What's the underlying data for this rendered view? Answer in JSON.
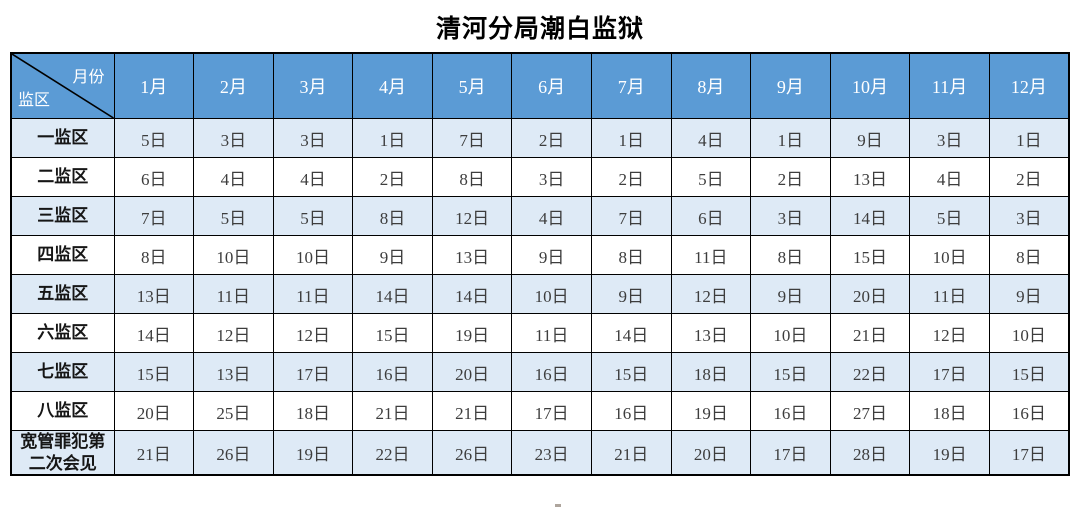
{
  "title": "清河分局潮白监狱",
  "colors": {
    "header_bg": "#5B9BD5",
    "alt_row_bg": "#DEEAF6",
    "plain_row_bg": "#FFFFFF",
    "border": "#000000",
    "header_text": "#FFFFFF",
    "cell_text": "#3D3D3D"
  },
  "table": {
    "corner": {
      "top_right": "月份",
      "bottom_left": "监区"
    },
    "months": [
      "1月",
      "2月",
      "3月",
      "4月",
      "5月",
      "6月",
      "7月",
      "8月",
      "9月",
      "10月",
      "11月",
      "12月"
    ],
    "rows": [
      {
        "label": "一监区",
        "values": [
          "5日",
          "3日",
          "3日",
          "1日",
          "7日",
          "2日",
          "1日",
          "4日",
          "1日",
          "9日",
          "3日",
          "1日"
        ]
      },
      {
        "label": "二监区",
        "values": [
          "6日",
          "4日",
          "4日",
          "2日",
          "8日",
          "3日",
          "2日",
          "5日",
          "2日",
          "13日",
          "4日",
          "2日"
        ]
      },
      {
        "label": "三监区",
        "values": [
          "7日",
          "5日",
          "5日",
          "8日",
          "12日",
          "4日",
          "7日",
          "6日",
          "3日",
          "14日",
          "5日",
          "3日"
        ]
      },
      {
        "label": "四监区",
        "values": [
          "8日",
          "10日",
          "10日",
          "9日",
          "13日",
          "9日",
          "8日",
          "11日",
          "8日",
          "15日",
          "10日",
          "8日"
        ]
      },
      {
        "label": "五监区",
        "values": [
          "13日",
          "11日",
          "11日",
          "14日",
          "14日",
          "10日",
          "9日",
          "12日",
          "9日",
          "20日",
          "11日",
          "9日"
        ]
      },
      {
        "label": "六监区",
        "values": [
          "14日",
          "12日",
          "12日",
          "15日",
          "19日",
          "11日",
          "14日",
          "13日",
          "10日",
          "21日",
          "12日",
          "10日"
        ]
      },
      {
        "label": "七监区",
        "values": [
          "15日",
          "13日",
          "17日",
          "16日",
          "20日",
          "16日",
          "15日",
          "18日",
          "15日",
          "22日",
          "17日",
          "15日"
        ]
      },
      {
        "label": "八监区",
        "values": [
          "20日",
          "25日",
          "18日",
          "21日",
          "21日",
          "17日",
          "16日",
          "19日",
          "16日",
          "27日",
          "18日",
          "16日"
        ]
      },
      {
        "label": "宽管罪犯第二次会见",
        "values": [
          "21日",
          "26日",
          "19日",
          "22日",
          "26日",
          "23日",
          "21日",
          "20日",
          "17日",
          "28日",
          "19日",
          "17日"
        ]
      }
    ]
  }
}
